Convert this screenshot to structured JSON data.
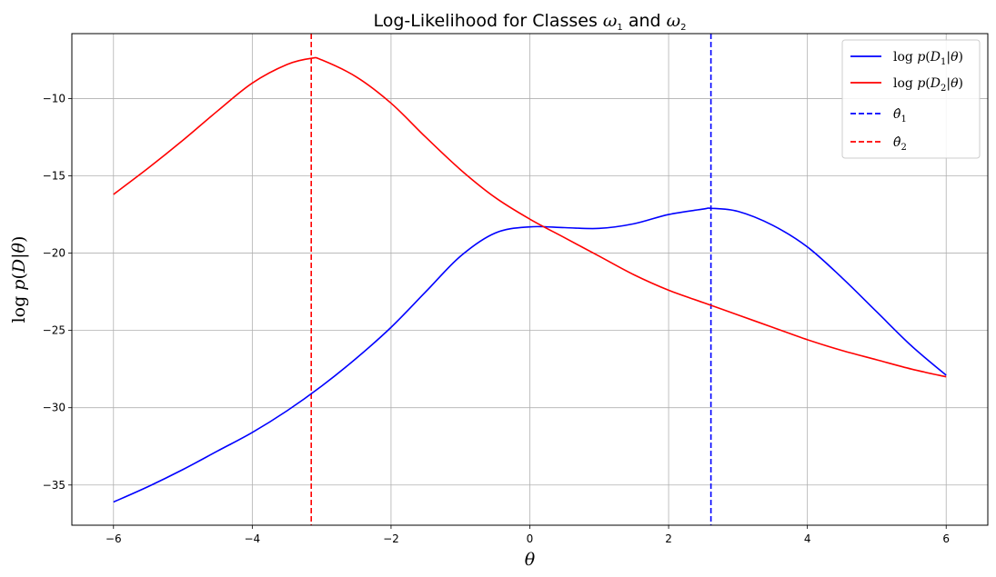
{
  "chart_data": {
    "type": "line",
    "title": "Log-Likelihood for Classes ω₁ and ω₂",
    "xlabel": "θ",
    "ylabel": "log p(D|θ)",
    "xlim": [
      -6.6,
      6.6
    ],
    "ylim": [
      -37.6,
      -5.8
    ],
    "xticks": [
      -6,
      -4,
      -2,
      0,
      2,
      4,
      6
    ],
    "yticks": [
      -35,
      -30,
      -25,
      -20,
      -15,
      -10
    ],
    "xtick_labels": [
      "−6",
      "−4",
      "−2",
      "0",
      "2",
      "4",
      "6"
    ],
    "ytick_labels": [
      "−35",
      "−30",
      "−25",
      "−20",
      "−15",
      "−10"
    ],
    "grid": true,
    "legend_position": "top-right",
    "series": [
      {
        "name": "log p(D₁|θ)",
        "color": "#0000ff",
        "style": "solid",
        "x": [
          -6,
          -5.5,
          -5,
          -4.5,
          -4,
          -3.5,
          -3,
          -2.5,
          -2,
          -1.5,
          -1,
          -0.5,
          0,
          0.5,
          1,
          1.5,
          2,
          2.5,
          2.61,
          3,
          3.5,
          4,
          4.5,
          5,
          5.5,
          6
        ],
        "y": [
          -36.1,
          -35.1,
          -34.0,
          -32.8,
          -31.6,
          -30.2,
          -28.6,
          -26.8,
          -24.8,
          -22.5,
          -20.2,
          -18.7,
          -18.3,
          -18.35,
          -18.4,
          -18.1,
          -17.5,
          -17.15,
          -17.1,
          -17.3,
          -18.2,
          -19.6,
          -21.6,
          -23.8,
          -26.0,
          -27.9
        ]
      },
      {
        "name": "log p(D₂|θ)",
        "color": "#ff0000",
        "style": "solid",
        "x": [
          -6,
          -5.5,
          -5,
          -4.5,
          -4,
          -3.5,
          -3.15,
          -3,
          -2.5,
          -2,
          -1.5,
          -1,
          -0.5,
          0,
          0.5,
          1,
          1.5,
          2,
          2.5,
          3,
          3.5,
          4,
          4.5,
          5,
          5.5,
          6
        ],
        "y": [
          -16.2,
          -14.5,
          -12.7,
          -10.8,
          -9.0,
          -7.8,
          -7.4,
          -7.5,
          -8.6,
          -10.3,
          -12.5,
          -14.6,
          -16.4,
          -17.8,
          -19.0,
          -20.2,
          -21.4,
          -22.4,
          -23.2,
          -24.0,
          -24.8,
          -25.6,
          -26.3,
          -26.9,
          -27.5,
          -28.0
        ]
      }
    ],
    "vlines": [
      {
        "name": "θ̂₁",
        "x": 2.61,
        "color": "#0000ff",
        "style": "dashed"
      },
      {
        "name": "θ̂₂",
        "x": -3.15,
        "color": "#ff0000",
        "style": "dashed"
      }
    ]
  }
}
